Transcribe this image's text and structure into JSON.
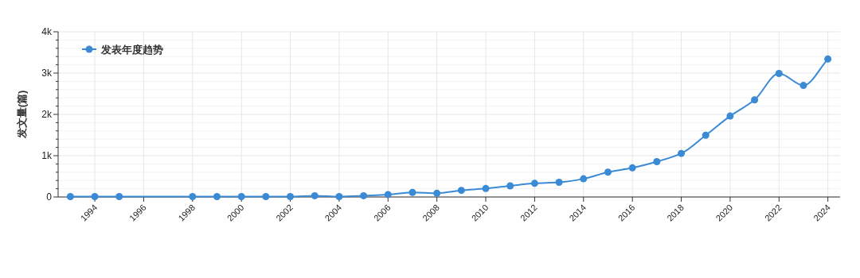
{
  "chart_data": {
    "type": "line",
    "ylabel": "发文量(篇)",
    "x": [
      1993,
      1994,
      1995,
      1998,
      1999,
      2000,
      2001,
      2002,
      2003,
      2004,
      2005,
      2006,
      2007,
      2008,
      2009,
      2010,
      2011,
      2012,
      2013,
      2014,
      2015,
      2016,
      2017,
      2018,
      2019,
      2020,
      2021,
      2022,
      2023,
      2024
    ],
    "series": [
      {
        "name": "发表年度趋势",
        "color": "#3a8ad6",
        "values": [
          10,
          10,
          10,
          10,
          10,
          10,
          10,
          10,
          30,
          10,
          30,
          60,
          110,
          90,
          160,
          205,
          270,
          330,
          355,
          440,
          600,
          705,
          855,
          1055,
          1495,
          1960,
          2350,
          2990,
          2700,
          3340
        ]
      }
    ],
    "xlim": [
      1992.5,
      2024.5
    ],
    "xticks": [
      1994,
      1996,
      1998,
      2000,
      2002,
      2004,
      2006,
      2008,
      2010,
      2012,
      2014,
      2016,
      2018,
      2020,
      2022,
      2024
    ],
    "ylim": [
      0,
      4000
    ],
    "yticks": [
      {
        "value": 0,
        "label": "0"
      },
      {
        "value": 200,
        "label": null
      },
      {
        "value": 400,
        "label": null
      },
      {
        "value": 600,
        "label": null
      },
      {
        "value": 800,
        "label": null
      },
      {
        "value": 1000,
        "label": "1k"
      },
      {
        "value": 1200,
        "label": null
      },
      {
        "value": 1400,
        "label": null
      },
      {
        "value": 1600,
        "label": null
      },
      {
        "value": 1800,
        "label": null
      },
      {
        "value": 2000,
        "label": "2k"
      },
      {
        "value": 2200,
        "label": null
      },
      {
        "value": 2400,
        "label": null
      },
      {
        "value": 2600,
        "label": null
      },
      {
        "value": 2800,
        "label": null
      },
      {
        "value": 3000,
        "label": "3k"
      },
      {
        "value": 3200,
        "label": null
      },
      {
        "value": 3400,
        "label": null
      },
      {
        "value": 3600,
        "label": null
      },
      {
        "value": 3800,
        "label": null
      },
      {
        "value": 4000,
        "label": "4k"
      }
    ],
    "grid": true,
    "legend": "top left",
    "marker": "circle",
    "line_style": "solid"
  }
}
